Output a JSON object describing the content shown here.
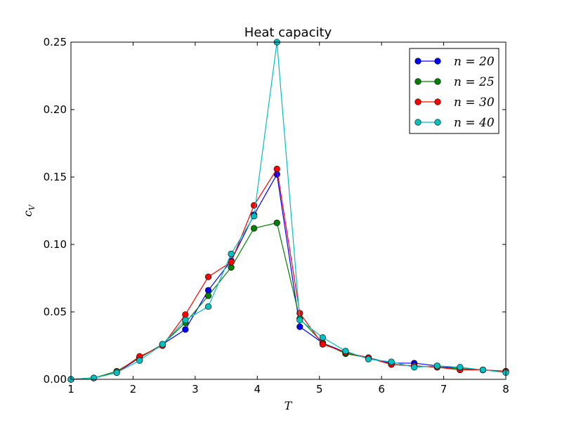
{
  "chart_data": {
    "type": "line",
    "title": "Heat capacity",
    "xlabel": "T",
    "ylabel": "c",
    "ylabel_subscript": "V",
    "xlim": [
      1,
      8
    ],
    "ylim": [
      0,
      0.25
    ],
    "xticks": [
      1,
      2,
      3,
      4,
      5,
      6,
      7,
      8
    ],
    "xtick_labels": [
      "1",
      "2",
      "3",
      "4",
      "5",
      "6",
      "7",
      "8"
    ],
    "yticks": [
      0,
      0.05,
      0.1,
      0.15,
      0.2,
      0.25
    ],
    "ytick_labels": [
      "0.00",
      "0.05",
      "0.10",
      "0.15",
      "0.20",
      "0.25"
    ],
    "grid": false,
    "legend_position": "top-right",
    "x": [
      1.0,
      1.368,
      1.737,
      2.105,
      2.474,
      2.842,
      3.211,
      3.579,
      3.947,
      4.316,
      4.684,
      5.053,
      5.421,
      5.789,
      6.158,
      6.526,
      6.895,
      7.263,
      7.632,
      8.0
    ],
    "series": [
      {
        "name": "n = 20",
        "legend_label": "n = 20",
        "color": "#0000ff",
        "values": [
          0.0,
          0.001,
          0.005,
          0.016,
          0.026,
          0.037,
          0.066,
          0.088,
          0.122,
          0.152,
          0.039,
          0.027,
          0.02,
          0.016,
          0.012,
          0.012,
          0.01,
          0.008,
          0.007,
          0.006
        ]
      },
      {
        "name": "n = 25",
        "legend_label": "n = 25",
        "color": "#008000",
        "values": [
          0.0,
          0.001,
          0.006,
          0.016,
          0.026,
          0.042,
          0.062,
          0.083,
          0.112,
          0.116,
          0.045,
          0.027,
          0.019,
          0.016,
          0.011,
          0.01,
          0.009,
          0.008,
          0.007,
          0.006
        ]
      },
      {
        "name": "n = 30",
        "legend_label": "n = 30",
        "color": "#ff0000",
        "values": [
          0.0,
          0.001,
          0.005,
          0.017,
          0.025,
          0.048,
          0.076,
          0.087,
          0.129,
          0.156,
          0.049,
          0.026,
          0.02,
          0.016,
          0.011,
          0.01,
          0.009,
          0.007,
          0.007,
          0.006
        ]
      },
      {
        "name": "n = 40",
        "legend_label": "n = 40",
        "color": "#00bfbf",
        "values": [
          0.0,
          0.001,
          0.005,
          0.014,
          0.026,
          0.044,
          0.054,
          0.093,
          0.121,
          0.25,
          0.044,
          0.031,
          0.021,
          0.015,
          0.013,
          0.009,
          0.01,
          0.009,
          0.007,
          0.005
        ]
      }
    ]
  }
}
